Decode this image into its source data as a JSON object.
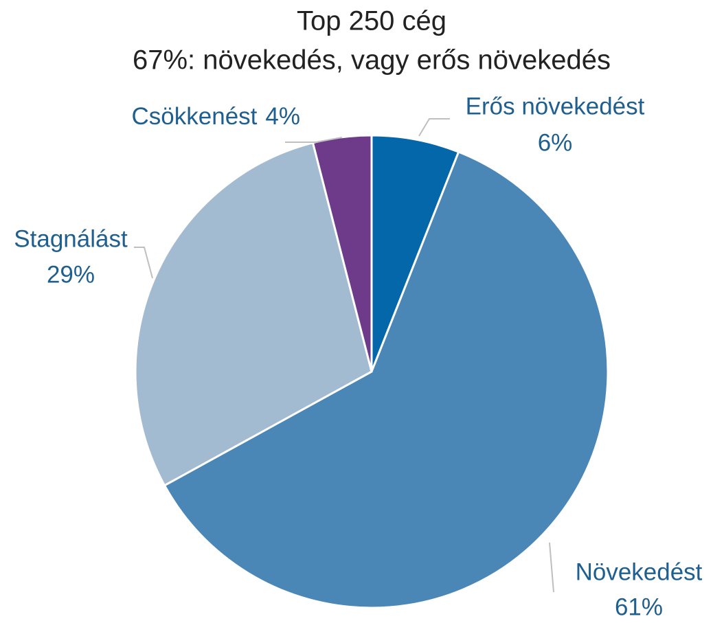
{
  "chart_data": {
    "type": "pie",
    "title": "Top 250 cég",
    "subtitle": "67%: növekedés, vagy erős növekedés",
    "categories": [
      "Erős növekedést",
      "Növekedést",
      "Stagnálást",
      "Csökkenést"
    ],
    "values": [
      6,
      61,
      29,
      4
    ],
    "value_labels": [
      "6%",
      "61%",
      "29%",
      "4%"
    ],
    "colors": [
      "#0467a9",
      "#4a87b6",
      "#a3bbd1",
      "#6e3b8b"
    ]
  }
}
